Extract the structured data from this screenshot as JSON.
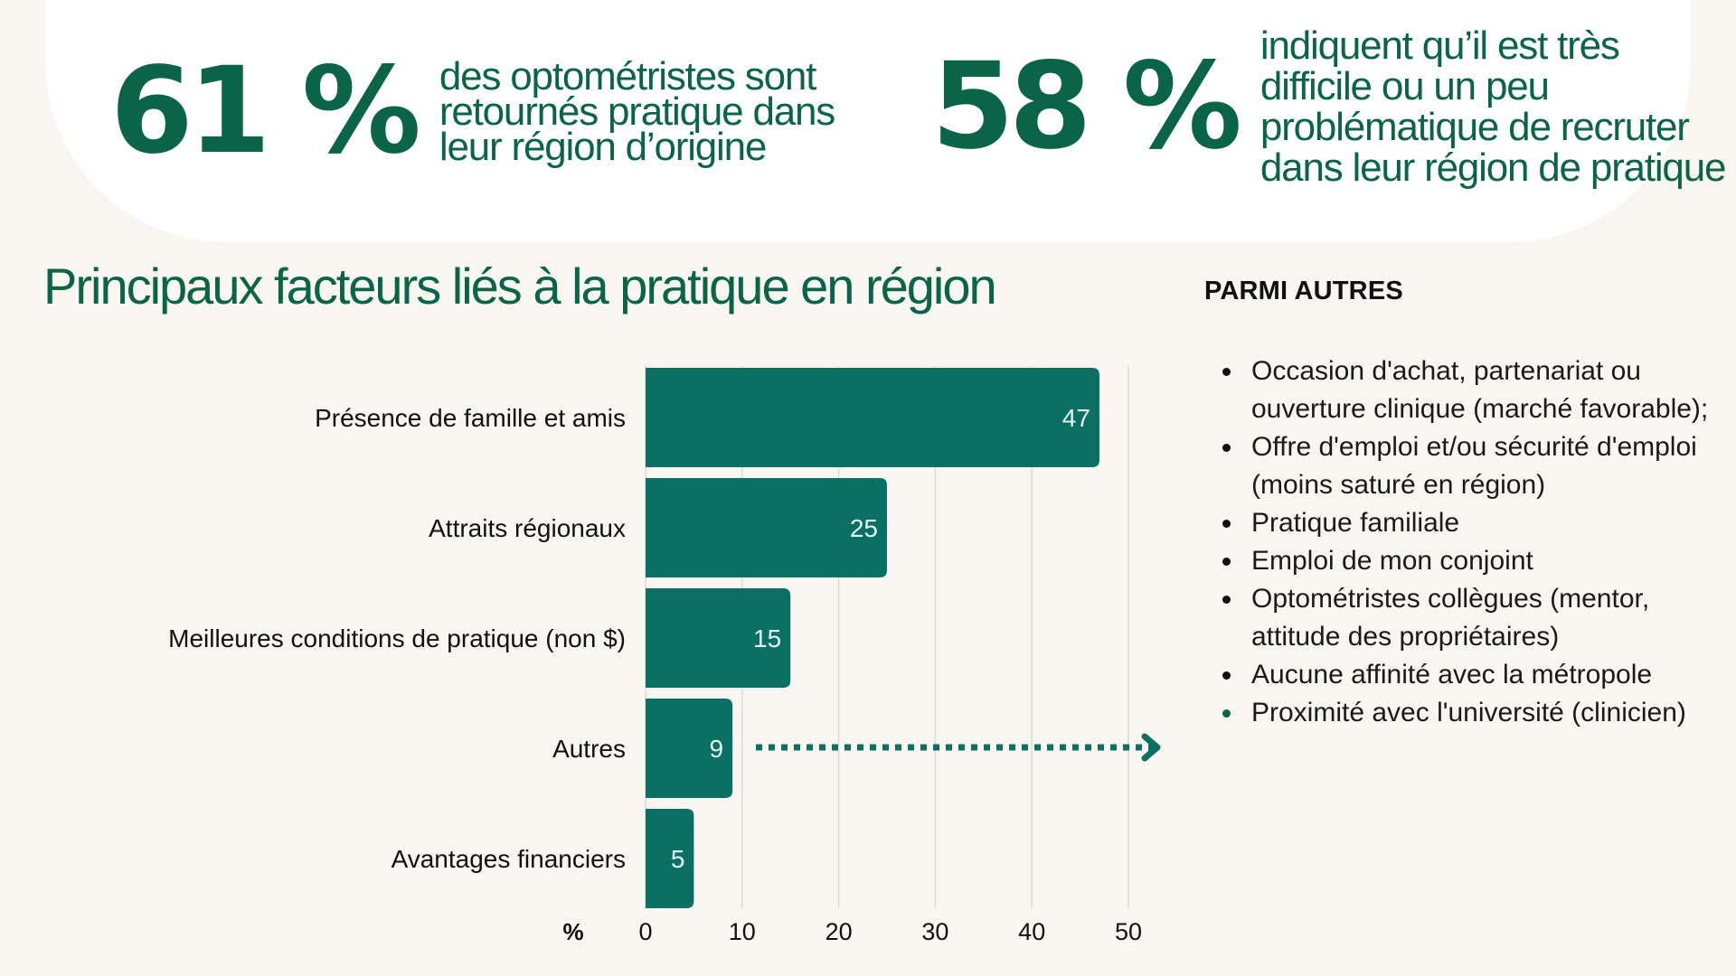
{
  "hero": {
    "stat1": {
      "value": "61 %",
      "text": "des optométristes sont retournés pratique dans leur région d’origine"
    },
    "stat2": {
      "value": "58 %",
      "text": "indiquent qu’il est très difficile ou un peu problématique de recruter dans leur région de pratique"
    }
  },
  "section_title": "Principaux facteurs liés à la pratique en région",
  "side": {
    "title": "PARMI AUTRES",
    "items": [
      "Occasion d'achat, partenariat ou ouverture clinique (marché favorable);",
      "Offre d'emploi et/ou sécurité d'emploi (moins saturé en région)",
      "Pratique familiale",
      "Emploi de mon conjoint",
      "Optométristes collègues (mentor, attitude des propriétaires)",
      "Aucune affinité avec la métropole",
      "Proximité avec l'université (clinicien)"
    ]
  },
  "colors": {
    "background": "#f9f5f1",
    "headline_green": "#0a6548",
    "bar_teal": "#0b7064",
    "gridline": "#dedad6"
  },
  "chart_data": {
    "type": "bar",
    "orientation": "horizontal",
    "title": "Principaux facteurs liés à la pratique en région",
    "categories": [
      "Présence de famille et amis",
      "Attraits régionaux",
      "Meilleures conditions de pratique (non $)",
      "Autres",
      "Avantages financiers"
    ],
    "values": [
      47,
      25,
      15,
      9,
      5
    ],
    "xlabel": "%",
    "ylabel": "",
    "xlim": [
      0,
      50
    ],
    "xticks": [
      0,
      10,
      20,
      30,
      40,
      50
    ],
    "grid": true,
    "data_labels": true,
    "annotation": {
      "type": "dotted-arrow",
      "from_category": "Autres",
      "points_to": "PARMI AUTRES list"
    }
  }
}
